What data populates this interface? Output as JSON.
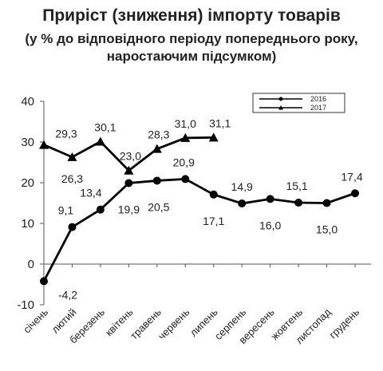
{
  "title": "Приріст (зниження) імпорту товарів",
  "subtitle_lines": [
    "(у % до відповідного періоду попереднього року,",
    "наростаючим підсумком)"
  ],
  "chart_data": {
    "type": "line",
    "title": "Приріст (зниження) імпорту товарів",
    "subtitle": "(у % до відповідного періоду попереднього року, наростаючим підсумком)",
    "categories": [
      "січень",
      "лютий",
      "березень",
      "квітень",
      "травень",
      "червень",
      "липень",
      "серпень",
      "вересень",
      "жовтень",
      "листопад",
      "грудень"
    ],
    "series": [
      {
        "name": "2016",
        "marker": "circle",
        "values": [
          -4.2,
          9.1,
          13.4,
          19.9,
          20.5,
          20.9,
          17.1,
          14.9,
          16.0,
          15.1,
          15.0,
          17.4
        ],
        "labels": [
          "-4,2",
          "9,1",
          "13,4",
          "19,9",
          "20,5",
          "20,9",
          "17,1",
          "14,9",
          "16,0",
          "15,1",
          "15,0",
          "17,4"
        ]
      },
      {
        "name": "2017",
        "marker": "triangle",
        "values": [
          29.3,
          26.3,
          30.1,
          23.0,
          28.3,
          31.0,
          31.1,
          null,
          null,
          null,
          null,
          null
        ],
        "labels": [
          "29,3",
          "26,3",
          "30,1",
          "23,0",
          "28,3",
          "31,0",
          "31,1",
          null,
          null,
          null,
          null,
          null
        ]
      }
    ],
    "yticks": [
      "40",
      "30",
      "20",
      "10",
      "0",
      "-10"
    ],
    "ylim": [
      -10,
      40
    ],
    "grid": false,
    "legend_position": "top-right",
    "line_color": "#000000"
  }
}
